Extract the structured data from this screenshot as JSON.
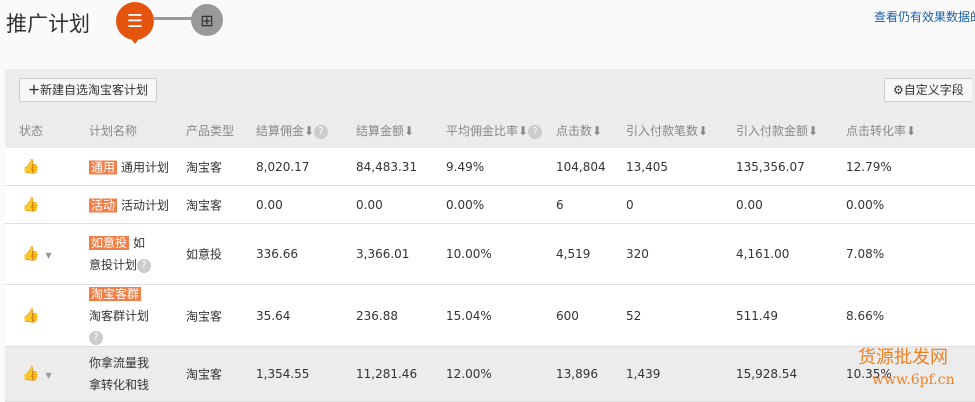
{
  "header": {
    "title": "推广计划",
    "view_link": "查看仍有效果数据的"
  },
  "toolbar": {
    "new_plan": "新建自选淘宝客计划",
    "custom_fields": "自定义字段"
  },
  "columns": [
    "状态",
    "计划名称",
    "产品类型",
    "结算佣金",
    "结算金额",
    "平均佣金比率",
    "点击数",
    "引入付款笔数",
    "引入付款金额",
    "点击转化率"
  ],
  "rows": [
    {
      "tag": "通用",
      "name": "通用计划",
      "type": "淘宝客",
      "commission": "8,020.17",
      "amount": "84,483.31",
      "rate": "9.49%",
      "clicks": "104,804",
      "orders": "13,405",
      "paid": "135,356.07",
      "conv": "12.79%"
    },
    {
      "tag": "活动",
      "name": "活动计划",
      "type": "淘宝客",
      "commission": "0.00",
      "amount": "0.00",
      "rate": "0.00%",
      "clicks": "6",
      "orders": "0",
      "paid": "0.00",
      "conv": "0.00%"
    },
    {
      "tag": "如意投",
      "name": "如意投计划",
      "type": "如意投",
      "commission": "336.66",
      "amount": "3,366.01",
      "rate": "10.00%",
      "clicks": "4,519",
      "orders": "320",
      "paid": "4,161.00",
      "conv": "7.08%"
    },
    {
      "tag": "淘宝客群",
      "name": "淘客群计划",
      "type": "淘宝客",
      "commission": "35.64",
      "amount": "236.88",
      "rate": "15.04%",
      "clicks": "600",
      "orders": "52",
      "paid": "511.49",
      "conv": "8.66%"
    },
    {
      "tag": "",
      "name": "你拿流量我拿转化和钱",
      "type": "淘宝客",
      "commission": "1,354.55",
      "amount": "11,281.46",
      "rate": "12.00%",
      "clicks": "13,896",
      "orders": "1,439",
      "paid": "15,928.54",
      "conv": "10.35%"
    }
  ],
  "watermark": {
    "line1": "货源批发网",
    "line2": "www.6pf.cn"
  },
  "colors": {
    "accent": "#e4540f",
    "tag": "#f07f4a",
    "link": "#1a5fa8"
  }
}
